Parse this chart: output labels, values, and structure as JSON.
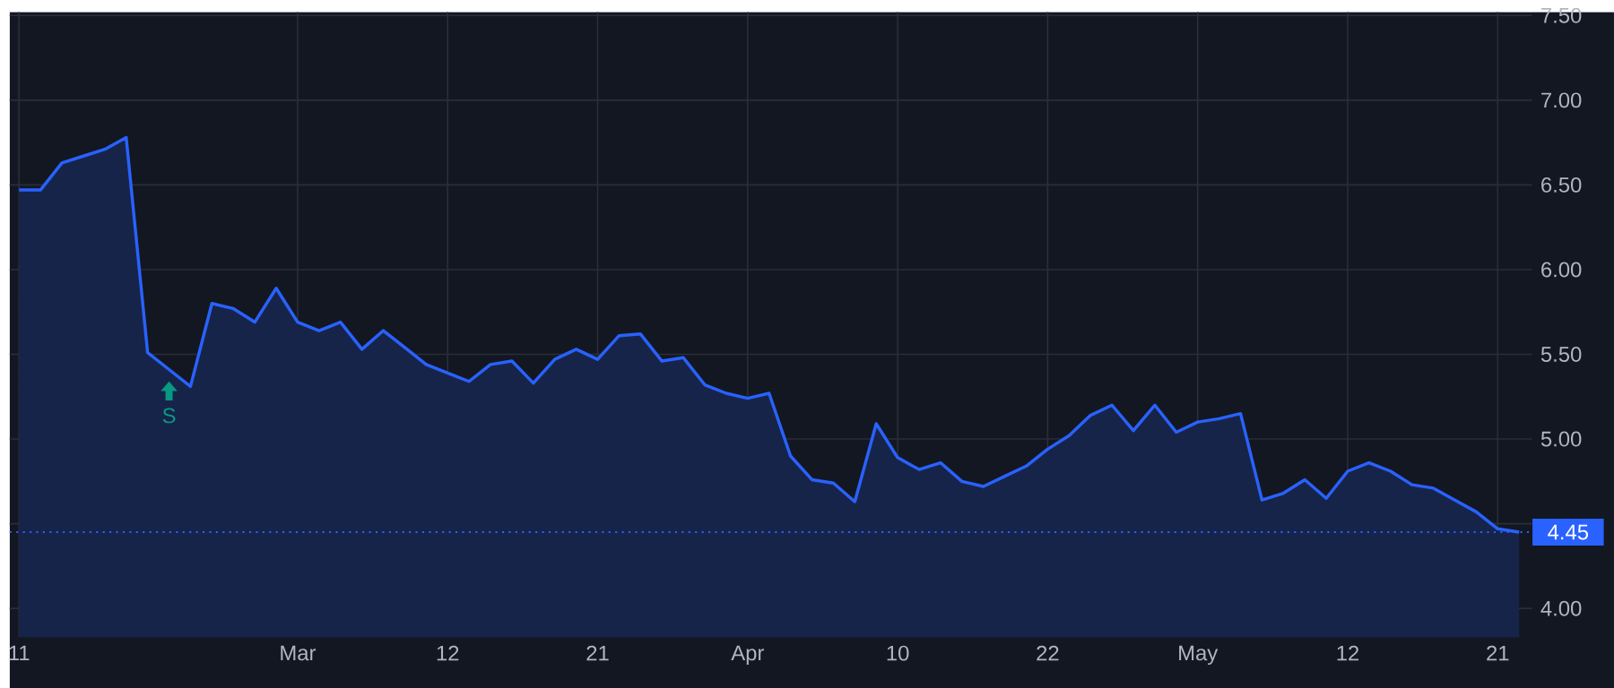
{
  "chart_data": {
    "type": "area",
    "categories": [
      "11",
      null,
      null,
      null,
      null,
      null,
      null,
      null,
      null,
      null,
      null,
      null,
      null,
      "Mar",
      null,
      null,
      null,
      null,
      null,
      null,
      "12",
      null,
      null,
      null,
      null,
      null,
      null,
      "21",
      null,
      null,
      null,
      null,
      null,
      null,
      "Apr",
      null,
      null,
      null,
      null,
      null,
      null,
      "10",
      null,
      null,
      null,
      null,
      null,
      null,
      "22",
      null,
      null,
      null,
      null,
      null,
      null,
      "May",
      null,
      null,
      null,
      null,
      null,
      null,
      "12",
      null,
      null,
      null,
      null,
      null,
      null,
      "21",
      null
    ],
    "series": [
      {
        "color": "#2962ff",
        "values": [
          6.47,
          6.47,
          6.63,
          6.67,
          6.71,
          6.78,
          5.51,
          5.41,
          5.31,
          5.8,
          5.77,
          5.69,
          5.89,
          5.69,
          5.64,
          5.69,
          5.53,
          5.64,
          5.54,
          5.44,
          5.39,
          5.34,
          5.44,
          5.46,
          5.33,
          5.47,
          5.53,
          5.47,
          5.61,
          5.62,
          5.46,
          5.48,
          5.32,
          5.27,
          5.24,
          5.27,
          4.9,
          4.76,
          4.74,
          4.63,
          5.09,
          4.89,
          4.82,
          4.86,
          4.75,
          4.72,
          4.78,
          4.84,
          4.94,
          5.02,
          5.14,
          5.2,
          5.05,
          5.2,
          5.04,
          5.1,
          5.12,
          5.15,
          4.64,
          4.68,
          4.76,
          4.65,
          4.81,
          4.86,
          4.81,
          4.73,
          4.71,
          4.64,
          4.57,
          4.47,
          4.45
        ]
      }
    ],
    "ylim": [
      3.83,
      7.52
    ],
    "yticks": [
      {
        "value": 4,
        "label": "4.00"
      },
      {
        "value": 4.5,
        "label": null
      },
      {
        "value": 5,
        "label": "5.00"
      },
      {
        "value": 5.5,
        "label": "5.50"
      },
      {
        "value": 6,
        "label": "6.00"
      },
      {
        "value": 6.5,
        "label": "6.50"
      },
      {
        "value": 7,
        "label": "7.00"
      },
      {
        "value": 7.5,
        "label": "7.50"
      }
    ],
    "grid": true,
    "marker": "none",
    "line_style": "solid",
    "ref_lines": [
      {
        "axis": "y",
        "value": 4.45,
        "label": "4.45",
        "color": "#2962ff",
        "line_style": "dotted"
      }
    ],
    "annotations": [
      {
        "text": "S",
        "y": 5.41
      }
    ]
  }
}
